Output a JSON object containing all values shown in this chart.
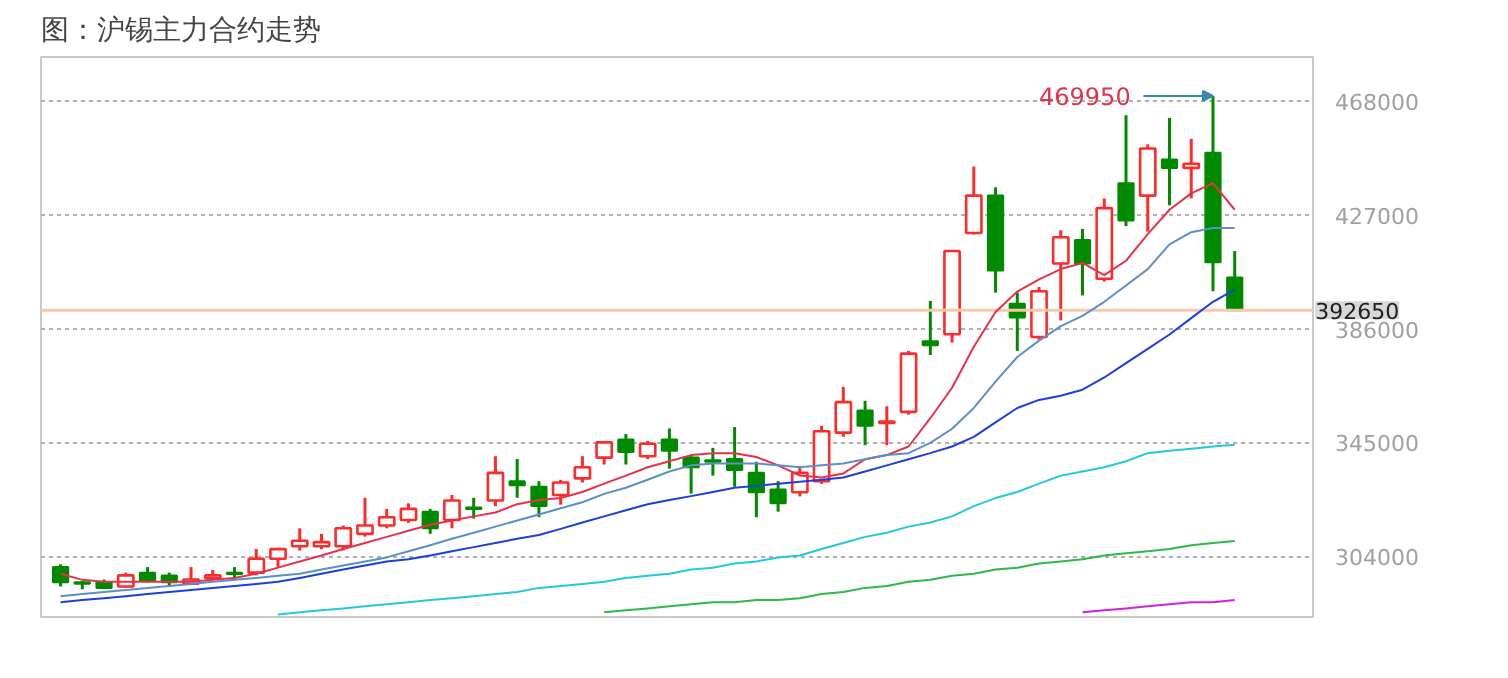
{
  "chart_data": {
    "type": "candlestick",
    "title": "图：沪锡主力合约走势",
    "categories": [
      null,
      null,
      null,
      null,
      null,
      null,
      null,
      null,
      null,
      null,
      null,
      null,
      null,
      null,
      null,
      null,
      null,
      null,
      null,
      null,
      null,
      null,
      null,
      null,
      null,
      null,
      null,
      null,
      null,
      null,
      null,
      null,
      null,
      null,
      null,
      null,
      null,
      null,
      null,
      null,
      null,
      null,
      null,
      null,
      null,
      null,
      null,
      null,
      null,
      null,
      null,
      null,
      null,
      null,
      null
    ],
    "ohlc": [
      [
        300000,
        301000,
        293000,
        294500
      ],
      [
        294500,
        295000,
        292000,
        294000
      ],
      [
        294500,
        295500,
        292000,
        292500
      ],
      [
        293000,
        298000,
        292500,
        297000
      ],
      [
        298000,
        300000,
        294500,
        295000
      ],
      [
        297000,
        298000,
        293000,
        294500
      ],
      [
        294000,
        300000,
        293500,
        295500
      ],
      [
        296000,
        299000,
        296000,
        297000
      ],
      [
        298000,
        300000,
        296000,
        297500
      ],
      [
        298000,
        306500,
        297000,
        303000
      ],
      [
        303000,
        307000,
        300000,
        306500
      ],
      [
        307500,
        314000,
        306000,
        309500
      ],
      [
        307500,
        312000,
        306500,
        309000
      ],
      [
        307500,
        315000,
        306000,
        314000
      ],
      [
        312000,
        325000,
        311000,
        315000
      ],
      [
        315000,
        321000,
        314000,
        318000
      ],
      [
        317000,
        323000,
        316000,
        321000
      ],
      [
        320000,
        321000,
        312000,
        314000
      ],
      [
        317000,
        326000,
        314000,
        324000
      ],
      [
        321500,
        325000,
        317500,
        321000
      ],
      [
        324000,
        340000,
        322000,
        334000
      ],
      [
        331000,
        339000,
        325000,
        329500
      ],
      [
        329000,
        331000,
        318000,
        322000
      ],
      [
        326000,
        331500,
        322500,
        330500
      ],
      [
        332000,
        340000,
        330500,
        336000
      ],
      [
        339500,
        345000,
        337000,
        345000
      ],
      [
        346000,
        348000,
        337000,
        341500
      ],
      [
        340000,
        345500,
        339000,
        344500
      ],
      [
        346000,
        350000,
        335500,
        342000
      ],
      [
        339500,
        340000,
        326500,
        336000
      ],
      [
        338500,
        343000,
        333000,
        338000
      ],
      [
        339000,
        350500,
        329000,
        335000
      ],
      [
        334000,
        338000,
        318000,
        327000
      ],
      [
        328000,
        331000,
        320000,
        323000
      ],
      [
        327000,
        336500,
        325500,
        334000
      ],
      [
        331000,
        351000,
        330000,
        349000
      ],
      [
        348500,
        365000,
        347000,
        359500
      ],
      [
        356500,
        360000,
        344000,
        351000
      ],
      [
        352000,
        358000,
        344000,
        352500
      ],
      [
        356000,
        378000,
        355000,
        377000
      ],
      [
        381500,
        396000,
        376500,
        380000
      ],
      [
        384000,
        414000,
        381000,
        414000
      ],
      [
        420500,
        444500,
        420000,
        434000
      ],
      [
        434000,
        437000,
        399000,
        407000
      ],
      [
        395000,
        399000,
        378000,
        390000
      ],
      [
        383000,
        401000,
        382000,
        399500
      ],
      [
        409500,
        421500,
        389000,
        419000
      ],
      [
        418000,
        422000,
        398000,
        409500
      ],
      [
        404000,
        433000,
        403000,
        429500
      ],
      [
        438500,
        463000,
        423000,
        425000
      ],
      [
        434000,
        452500,
        421000,
        451000
      ],
      [
        447000,
        462000,
        430500,
        444000
      ],
      [
        444000,
        454500,
        433000,
        445500
      ],
      [
        449500,
        469950,
        399500,
        410000
      ],
      [
        404500,
        414000,
        392650,
        392650
      ]
    ],
    "series": [
      {
        "type": "line",
        "color": "#e8304a",
        "values": [
          297600,
          295400,
          294700,
          294700,
          294700,
          294700,
          294700,
          295400,
          296100,
          297600,
          299800,
          302000,
          304200,
          306500,
          308700,
          310900,
          313100,
          315300,
          316800,
          318300,
          319700,
          322700,
          324200,
          324900,
          327100,
          330100,
          333000,
          336000,
          338200,
          340400,
          341100,
          341100,
          339700,
          336700,
          333000,
          332300,
          333800,
          338900,
          340400,
          343500,
          353700,
          364700,
          379500,
          392000,
          399400,
          403800,
          407500,
          409700,
          405300,
          410500,
          420100,
          428900,
          434800,
          438500,
          428900
        ]
      },
      {
        "type": "line",
        "color": "#5b8fc9",
        "values": [
          289500,
          290300,
          291000,
          291700,
          292500,
          293200,
          293900,
          294700,
          295400,
          296100,
          296900,
          297600,
          299100,
          300600,
          302000,
          303500,
          305700,
          307900,
          310200,
          312400,
          314600,
          316800,
          319000,
          321200,
          323400,
          326400,
          328600,
          331500,
          334500,
          336700,
          337400,
          337400,
          337400,
          336700,
          336000,
          336700,
          337400,
          338900,
          340400,
          341100,
          344800,
          349900,
          357400,
          366900,
          375800,
          381700,
          386900,
          390600,
          395700,
          401600,
          407500,
          416400,
          420800,
          422300,
          422300
        ]
      },
      {
        "type": "line",
        "color": "#1a3fe0",
        "values": [
          287300,
          288100,
          288800,
          289500,
          290300,
          291000,
          291700,
          292500,
          293200,
          293900,
          294700,
          296100,
          297600,
          299100,
          300600,
          302000,
          302800,
          304200,
          305700,
          307200,
          308700,
          310200,
          311600,
          313800,
          316100,
          318300,
          320500,
          322700,
          324200,
          325600,
          327100,
          328600,
          329300,
          330100,
          330800,
          331500,
          332300,
          334500,
          336700,
          338900,
          341100,
          343500,
          347000,
          352200,
          357400,
          360300,
          361800,
          364000,
          368400,
          373600,
          378700,
          383900,
          389800,
          395700,
          400100
        ]
      },
      {
        "type": "line",
        "color": "#22c8e0",
        "values": [
          null,
          null,
          null,
          null,
          null,
          null,
          null,
          null,
          null,
          null,
          282900,
          283700,
          284400,
          285100,
          285900,
          286600,
          287300,
          288100,
          288800,
          289500,
          290300,
          291000,
          292500,
          293200,
          293900,
          294700,
          296100,
          296900,
          297600,
          299100,
          299800,
          301300,
          302000,
          303500,
          304200,
          306500,
          308700,
          310900,
          312400,
          314600,
          316100,
          318300,
          322000,
          324900,
          327100,
          330100,
          333000,
          334500,
          336000,
          338200,
          341100,
          342000,
          342700,
          343500,
          344100
        ]
      },
      {
        "type": "line",
        "color": "#2db84a",
        "values": [
          null,
          null,
          null,
          null,
          null,
          null,
          null,
          null,
          null,
          null,
          null,
          null,
          null,
          null,
          null,
          null,
          null,
          null,
          null,
          null,
          null,
          null,
          null,
          null,
          null,
          283700,
          284400,
          285100,
          285900,
          286600,
          287300,
          287300,
          288100,
          288100,
          288800,
          290300,
          291000,
          292500,
          293200,
          294700,
          295400,
          296900,
          297600,
          299100,
          299800,
          301300,
          302000,
          302800,
          304200,
          305000,
          305700,
          306500,
          307900,
          308700,
          309400
        ]
      },
      {
        "type": "line",
        "color": "#d020e0",
        "values": [
          null,
          null,
          null,
          null,
          null,
          null,
          null,
          null,
          null,
          null,
          null,
          null,
          null,
          null,
          null,
          null,
          null,
          null,
          null,
          null,
          null,
          null,
          null,
          null,
          null,
          null,
          null,
          null,
          null,
          null,
          null,
          null,
          null,
          null,
          null,
          null,
          null,
          null,
          null,
          null,
          null,
          null,
          null,
          null,
          null,
          null,
          null,
          283700,
          284400,
          285100,
          285900,
          286600,
          287300,
          287300,
          288100
        ]
      }
    ],
    "ylim": [
      282000,
      484000
    ],
    "yticks": [
      304000,
      345000,
      386000,
      427000,
      468000
    ],
    "ref_lines": [
      {
        "axis": "y",
        "value": 392650,
        "label": "392650",
        "color": "#f8c8a8"
      }
    ],
    "annotations": [
      "469950"
    ],
    "grid": "y"
  }
}
